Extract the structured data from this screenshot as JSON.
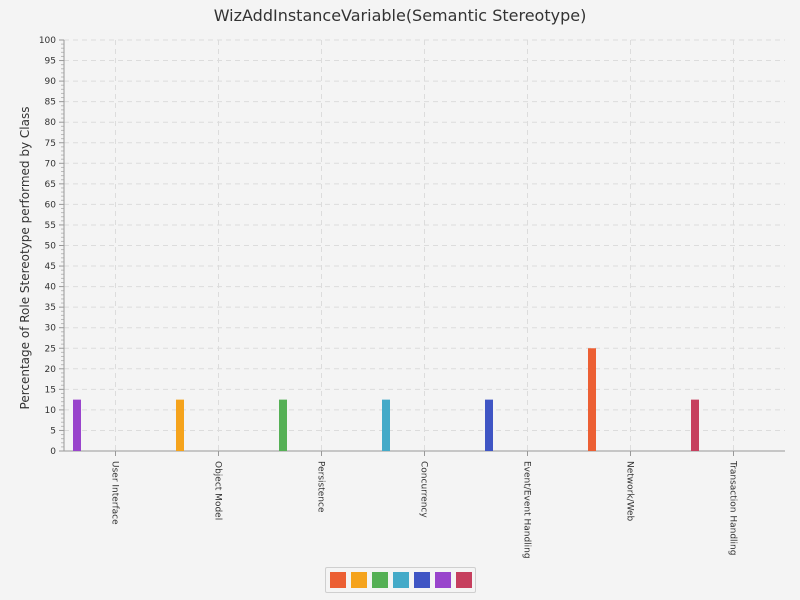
{
  "chart_data": {
    "type": "bar",
    "title": "WizAddInstanceVariable(Semantic Stereotype)",
    "xlabel": "",
    "ylabel": "Percentage of Role Stereotype performed by Class",
    "ylim": [
      0,
      100
    ],
    "ytick_step": 5,
    "grid": true,
    "legend_position": "bottom",
    "categories": [
      "User Interface",
      "Object Model",
      "Persistence",
      "Concurrency",
      "Event/Event Handling",
      "Network/Web",
      "Transaction Handling"
    ],
    "values": [
      12.5,
      12.5,
      12.5,
      12.5,
      12.5,
      25,
      12.5
    ],
    "bar_colors": [
      "#9944cc",
      "#f5a31c",
      "#55b055",
      "#44aac8",
      "#3f55c4",
      "#ec5f33",
      "#c63f5e"
    ],
    "legend_colors": [
      "#ec5f33",
      "#f5a31c",
      "#55b055",
      "#44aac8",
      "#3f55c4",
      "#9944cc",
      "#c63f5e"
    ]
  }
}
